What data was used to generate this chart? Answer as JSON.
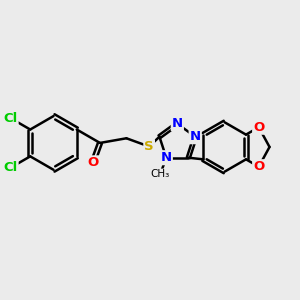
{
  "background_color": "#ebebeb",
  "bond_color": "#000000",
  "bond_width": 1.8,
  "atom_colors": {
    "Cl": "#00cc00",
    "O": "#ff0000",
    "N": "#0000ff",
    "S": "#ccaa00",
    "C": "#000000"
  },
  "figsize": [
    3.0,
    3.0
  ],
  "dpi": 100
}
